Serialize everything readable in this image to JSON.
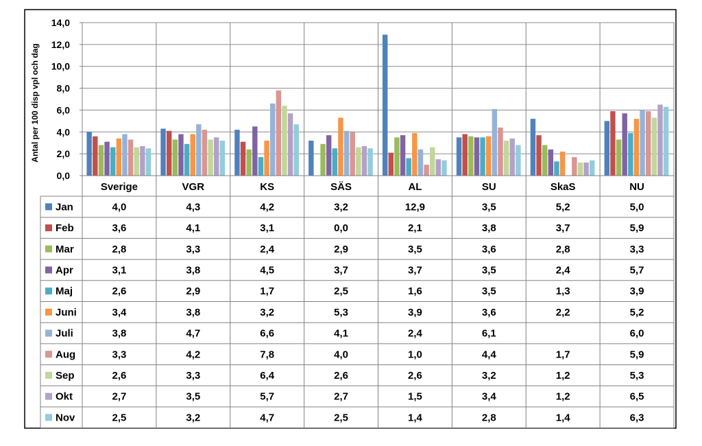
{
  "chart_data": {
    "type": "bar",
    "title": "",
    "xlabel": "",
    "ylabel": "Antal per 100 disp vpl och dag",
    "ylim": [
      0,
      14
    ],
    "yticks": [
      "0,0",
      "2,0",
      "4,0",
      "6,0",
      "8,0",
      "10,0",
      "12,0",
      "14,0"
    ],
    "grid": true,
    "legend": "data-table",
    "categories": [
      "Sverige",
      "VGR",
      "KS",
      "SÄS",
      "AL",
      "SU",
      "SkaS",
      "NU"
    ],
    "series": [
      {
        "name": "Jan",
        "color": "#4F81BD",
        "values": [
          4.0,
          4.3,
          4.2,
          3.2,
          12.9,
          3.5,
          5.2,
          5.0
        ],
        "labels": [
          "4,0",
          "4,3",
          "4,2",
          "3,2",
          "12,9",
          "3,5",
          "5,2",
          "5,0"
        ]
      },
      {
        "name": "Feb",
        "color": "#C0504D",
        "values": [
          3.6,
          4.1,
          3.1,
          0.0,
          2.1,
          3.8,
          3.7,
          5.9
        ],
        "labels": [
          "3,6",
          "4,1",
          "3,1",
          "0,0",
          "2,1",
          "3,8",
          "3,7",
          "5,9"
        ]
      },
      {
        "name": "Mar",
        "color": "#9BBB59",
        "values": [
          2.8,
          3.3,
          2.4,
          2.9,
          3.5,
          3.6,
          2.8,
          3.3
        ],
        "labels": [
          "2,8",
          "3,3",
          "2,4",
          "2,9",
          "3,5",
          "3,6",
          "2,8",
          "3,3"
        ]
      },
      {
        "name": "Apr",
        "color": "#8064A2",
        "values": [
          3.1,
          3.8,
          4.5,
          3.7,
          3.7,
          3.5,
          2.4,
          5.7
        ],
        "labels": [
          "3,1",
          "3,8",
          "4,5",
          "3,7",
          "3,7",
          "3,5",
          "2,4",
          "5,7"
        ]
      },
      {
        "name": "Maj",
        "color": "#4BACC6",
        "values": [
          2.6,
          2.9,
          1.7,
          2.5,
          1.6,
          3.5,
          1.3,
          3.9
        ],
        "labels": [
          "2,6",
          "2,9",
          "1,7",
          "2,5",
          "1,6",
          "3,5",
          "1,3",
          "3,9"
        ]
      },
      {
        "name": "Juni",
        "color": "#F79646",
        "values": [
          3.4,
          3.8,
          3.2,
          5.3,
          3.9,
          3.6,
          2.2,
          5.2
        ],
        "labels": [
          "3,4",
          "3,8",
          "3,2",
          "5,3",
          "3,9",
          "3,6",
          "2,2",
          "5,2"
        ]
      },
      {
        "name": "Juli",
        "color": "#95B3D7",
        "values": [
          3.8,
          4.7,
          6.6,
          4.1,
          2.4,
          6.1,
          null,
          6.0
        ],
        "labels": [
          "3,8",
          "4,7",
          "6,6",
          "4,1",
          "2,4",
          "6,1",
          "",
          "6,0"
        ]
      },
      {
        "name": "Aug",
        "color": "#D99694",
        "values": [
          3.3,
          4.2,
          7.8,
          4.0,
          1.0,
          4.4,
          1.7,
          5.9
        ],
        "labels": [
          "3,3",
          "4,2",
          "7,8",
          "4,0",
          "1,0",
          "4,4",
          "1,7",
          "5,9"
        ]
      },
      {
        "name": "Sep",
        "color": "#C3D69B",
        "values": [
          2.6,
          3.3,
          6.4,
          2.6,
          2.6,
          3.2,
          1.2,
          5.3
        ],
        "labels": [
          "2,6",
          "3,3",
          "6,4",
          "2,6",
          "2,6",
          "3,2",
          "1,2",
          "5,3"
        ]
      },
      {
        "name": "Okt",
        "color": "#B3A2C7",
        "values": [
          2.7,
          3.5,
          5.7,
          2.7,
          1.5,
          3.4,
          1.2,
          6.5
        ],
        "labels": [
          "2,7",
          "3,5",
          "5,7",
          "2,7",
          "1,5",
          "3,4",
          "1,2",
          "6,5"
        ]
      },
      {
        "name": "Nov",
        "color": "#93CDDD",
        "values": [
          2.5,
          3.2,
          4.7,
          2.5,
          1.4,
          2.8,
          1.4,
          6.3
        ],
        "labels": [
          "2,5",
          "3,2",
          "4,7",
          "2,5",
          "1,4",
          "2,8",
          "1,4",
          "6,3"
        ]
      }
    ]
  }
}
